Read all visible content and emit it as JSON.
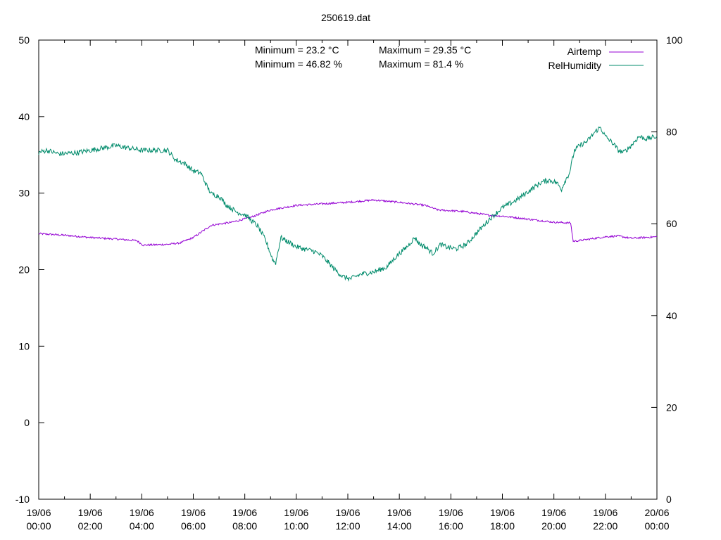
{
  "chart_data": {
    "type": "line",
    "title": "250619.dat",
    "x_ticks": [
      {
        "l1": "19/06",
        "l2": "00:00",
        "h": 0
      },
      {
        "l1": "19/06",
        "l2": "02:00",
        "h": 2
      },
      {
        "l1": "19/06",
        "l2": "04:00",
        "h": 4
      },
      {
        "l1": "19/06",
        "l2": "06:00",
        "h": 6
      },
      {
        "l1": "19/06",
        "l2": "08:00",
        "h": 8
      },
      {
        "l1": "19/06",
        "l2": "10:00",
        "h": 10
      },
      {
        "l1": "19/06",
        "l2": "12:00",
        "h": 12
      },
      {
        "l1": "19/06",
        "l2": "14:00",
        "h": 14
      },
      {
        "l1": "19/06",
        "l2": "16:00",
        "h": 16
      },
      {
        "l1": "19/06",
        "l2": "18:00",
        "h": 18
      },
      {
        "l1": "19/06",
        "l2": "20:00",
        "h": 20
      },
      {
        "l1": "19/06",
        "l2": "22:00",
        "h": 22
      },
      {
        "l1": "20/06",
        "l2": "00:00",
        "h": 24
      }
    ],
    "xlim": [
      0,
      24
    ],
    "y_left": {
      "lim": [
        -10,
        50
      ],
      "ticks": [
        "-10",
        "0",
        "10",
        "20",
        "30",
        "40",
        "50"
      ]
    },
    "y_right": {
      "lim": [
        0,
        100
      ],
      "ticks": [
        "0",
        "20",
        "40",
        "60",
        "80",
        "100"
      ]
    },
    "stats": {
      "min_temp": "Minimum = 23.2 °C",
      "max_temp": "Maximum = 29.35 °C",
      "min_hum": "Minimum = 46.82 %",
      "max_hum": "Maximum = 81.4 %"
    },
    "series": [
      {
        "name": "Airtemp",
        "color": "#9400d3",
        "axis": "left",
        "x": [
          0,
          1,
          2,
          3,
          3.8,
          4.05,
          5,
          5.5,
          6,
          6.7,
          7.5,
          8.2,
          9,
          10,
          11,
          12,
          13,
          14,
          15,
          15.5,
          16.5,
          17.5,
          18,
          19,
          20,
          20.65,
          20.75,
          21,
          22,
          22.5,
          23,
          24
        ],
        "y": [
          24.7,
          24.5,
          24.2,
          24.0,
          23.8,
          23.2,
          23.3,
          23.5,
          24.2,
          25.8,
          26.2,
          26.8,
          27.8,
          28.4,
          28.6,
          28.8,
          29.1,
          28.8,
          28.4,
          27.8,
          27.6,
          27.1,
          27.0,
          26.6,
          26.2,
          26.1,
          23.7,
          23.8,
          24.3,
          24.4,
          24.1,
          24.3
        ]
      },
      {
        "name": "RelHumidity",
        "color": "#008b6b",
        "axis": "right",
        "x": [
          0,
          0.3,
          0.8,
          1.5,
          2.5,
          3,
          3.5,
          4,
          4.5,
          5,
          5.3,
          5.7,
          6,
          6.3,
          6.5,
          6.7,
          7,
          7.3,
          7.7,
          8,
          8.5,
          8.8,
          9.1,
          9.2,
          9.4,
          9.7,
          10,
          10.3,
          10.7,
          11,
          11.5,
          11.8,
          12.1,
          12.5,
          13,
          13.5,
          13.9,
          14.3,
          14.6,
          14.8,
          15,
          15.3,
          15.6,
          15.8,
          16.2,
          16.6,
          17,
          17.5,
          18,
          18.5,
          19,
          19.5,
          19.8,
          20.1,
          20.3,
          20.4,
          20.6,
          20.8,
          21,
          21.3,
          21.6,
          21.8,
          22,
          22.3,
          22.5,
          22.7,
          23,
          23.3,
          23.6,
          24
        ],
        "y": [
          75.5,
          76.0,
          75.2,
          75.5,
          76.5,
          77.0,
          76.5,
          76.0,
          76.0,
          76.0,
          74.0,
          73.0,
          71.5,
          71.0,
          68.5,
          66.5,
          66.0,
          64.0,
          62.5,
          62.0,
          59.5,
          56.5,
          52.0,
          51.5,
          57.0,
          56.0,
          55.0,
          54.5,
          54.0,
          53.0,
          50.0,
          48.5,
          48.0,
          49.0,
          49.5,
          50.5,
          53.0,
          55.0,
          57.0,
          55.5,
          55.0,
          53.5,
          55.5,
          55.0,
          54.5,
          55.5,
          58.0,
          61.0,
          63.5,
          65.0,
          67.0,
          69.0,
          69.5,
          69.0,
          67.5,
          69.0,
          71.0,
          76.0,
          77.0,
          78.0,
          80.0,
          81.0,
          79.0,
          77.5,
          76.0,
          75.5,
          77.0,
          79.0,
          78.5,
          79.0
        ]
      }
    ]
  }
}
